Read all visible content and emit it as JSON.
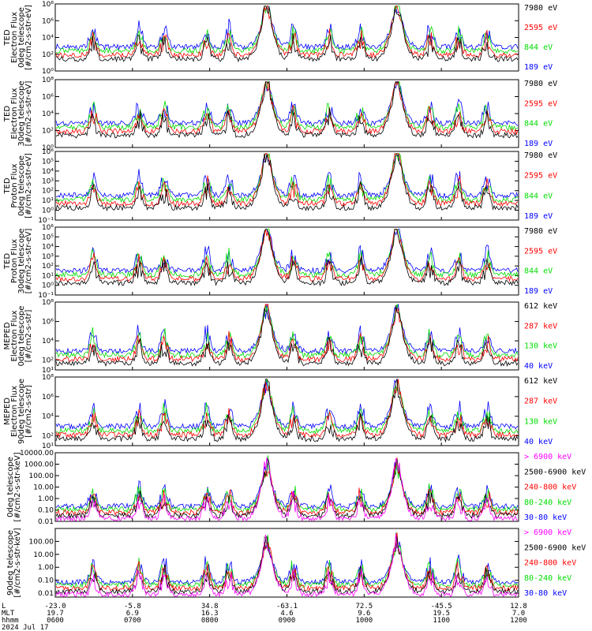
{
  "figure": {
    "date_label": "2024 Jul 17",
    "row_labels": [
      "L",
      "MLT",
      "hhmm"
    ],
    "x_ticks": [
      {
        "L": "-23.0",
        "MLT": "19.7",
        "hhmm": "0600"
      },
      {
        "L": "-5.8",
        "MLT": "6.9",
        "hhmm": "0700"
      },
      {
        "L": "34.8",
        "MLT": "16.3",
        "hhmm": "0800"
      },
      {
        "L": "-63.1",
        "MLT": "4.6",
        "hhmm": "0900"
      },
      {
        "L": "72.5",
        "MLT": "9.6",
        "hhmm": "1000"
      },
      {
        "L": "-45.5",
        "MLT": "19.5",
        "hhmm": "1100"
      },
      {
        "L": "12.8",
        "MLT": "7.0",
        "hhmm": "1200"
      }
    ],
    "colors": {
      "black": "#000000",
      "red": "#ff0000",
      "green": "#00dd00",
      "blue": "#0000ff",
      "magenta": "#ff00ff"
    }
  },
  "chart_data": [
    {
      "type": "line",
      "ylabel": [
        "TED",
        "Electron Flux",
        "0deg telescope",
        "[#/cm2-s-str-eV]"
      ],
      "log_y": true,
      "ylim": [
        1.0,
        100000000.0
      ],
      "y_ticks": [
        "10^0",
        "10^2",
        "10^4",
        "10^6",
        "10^8"
      ],
      "series": [
        {
          "name": "7980 eV",
          "color": "black"
        },
        {
          "name": "2595 eV",
          "color": "red"
        },
        {
          "name": "844 eV",
          "color": "green"
        },
        {
          "name": "189 eV",
          "color": "blue"
        }
      ]
    },
    {
      "type": "line",
      "ylabel": [
        "TED",
        "Electron Flux",
        "30deg telescope",
        "[#/cm2-s-str-eV]"
      ],
      "log_y": true,
      "ylim": [
        1.0,
        100000000.0
      ],
      "y_ticks": [
        "10^0",
        "10^2",
        "10^4",
        "10^6",
        "10^8"
      ],
      "series": [
        {
          "name": "7980 eV",
          "color": "black"
        },
        {
          "name": "2595 eV",
          "color": "red"
        },
        {
          "name": "844 eV",
          "color": "green"
        },
        {
          "name": "189 eV",
          "color": "blue"
        }
      ]
    },
    {
      "type": "line",
      "ylabel": [
        "TED",
        "Proton Flux",
        "0deg telescope",
        "[#/cm2-s-str-eV]"
      ],
      "log_y": true,
      "ylim": [
        0.1,
        1000000.0
      ],
      "y_ticks": [
        "10^-1",
        "10^0",
        "10^1",
        "10^2",
        "10^3",
        "10^4",
        "10^5",
        "10^6"
      ],
      "series": [
        {
          "name": "7980 eV",
          "color": "black"
        },
        {
          "name": "2595 eV",
          "color": "red"
        },
        {
          "name": "844 eV",
          "color": "green"
        },
        {
          "name": "189 eV",
          "color": "blue"
        }
      ]
    },
    {
      "type": "line",
      "ylabel": [
        "TED",
        "Proton Flux",
        "30deg telescope",
        "[#/cm2-s-str-eV]"
      ],
      "log_y": true,
      "ylim": [
        0.1,
        1000000.0
      ],
      "y_ticks": [
        "10^-1",
        "10^0",
        "10^1",
        "10^2",
        "10^3",
        "10^4",
        "10^5",
        "10^6"
      ],
      "series": [
        {
          "name": "7980 eV",
          "color": "black"
        },
        {
          "name": "2595 eV",
          "color": "red"
        },
        {
          "name": "844 eV",
          "color": "green"
        },
        {
          "name": "189 eV",
          "color": "blue"
        }
      ]
    },
    {
      "type": "line",
      "ylabel": [
        "MEPED",
        "Electron Flux",
        "0deg telescope",
        "[#/cm2-s-str]"
      ],
      "log_y": true,
      "ylim": [
        10.0,
        100000000.0
      ],
      "y_ticks": [
        "10^1",
        "10^2",
        "10^4",
        "10^6",
        "10^8"
      ],
      "series": [
        {
          "name": "612 keV",
          "color": "black"
        },
        {
          "name": "287 keV",
          "color": "red"
        },
        {
          "name": "130 keV",
          "color": "green"
        },
        {
          "name": "40 keV",
          "color": "blue"
        }
      ]
    },
    {
      "type": "line",
      "ylabel": [
        "MEPED",
        "Electron Flux",
        "90deg telescope",
        "[#/cm2-s-str]"
      ],
      "log_y": true,
      "ylim": [
        10.0,
        100000000.0
      ],
      "y_ticks": [
        "10^1",
        "10^2",
        "10^4",
        "10^6",
        "10^8"
      ],
      "series": [
        {
          "name": "612 keV",
          "color": "black"
        },
        {
          "name": "287 keV",
          "color": "red"
        },
        {
          "name": "130 keV",
          "color": "green"
        },
        {
          "name": "40 keV",
          "color": "blue"
        }
      ]
    },
    {
      "type": "line",
      "ylabel": [
        "0deg telescope",
        "[#/cm2-s-str-keV]"
      ],
      "log_y": true,
      "ylim": [
        0.01,
        10000
      ],
      "y_ticks": [
        "0.01",
        "0.10",
        "1.00",
        "10.00",
        "100.00",
        "1000.00",
        "10000.00"
      ],
      "series": [
        {
          "name": "> 6900 keV",
          "color": "magenta"
        },
        {
          "name": "2500-6900 keV",
          "color": "black"
        },
        {
          "name": "240-800 keV",
          "color": "red"
        },
        {
          "name": "80-240 keV",
          "color": "green"
        },
        {
          "name": "30-80 keV",
          "color": "blue"
        }
      ]
    },
    {
      "type": "line",
      "ylabel": [
        "90deg telescope",
        "[#/cm2-s-str-keV]"
      ],
      "log_y": true,
      "ylim": [
        0.005,
        1000
      ],
      "y_ticks": [
        "0.01",
        "0.10",
        "1.00",
        "10.00",
        "100.00"
      ],
      "series": [
        {
          "name": "> 6900 keV",
          "color": "magenta"
        },
        {
          "name": "2500-6900 keV",
          "color": "black"
        },
        {
          "name": "240-800 keV",
          "color": "red"
        },
        {
          "name": "80-240 keV",
          "color": "green"
        },
        {
          "name": "30-80 keV",
          "color": "blue"
        }
      ]
    }
  ]
}
